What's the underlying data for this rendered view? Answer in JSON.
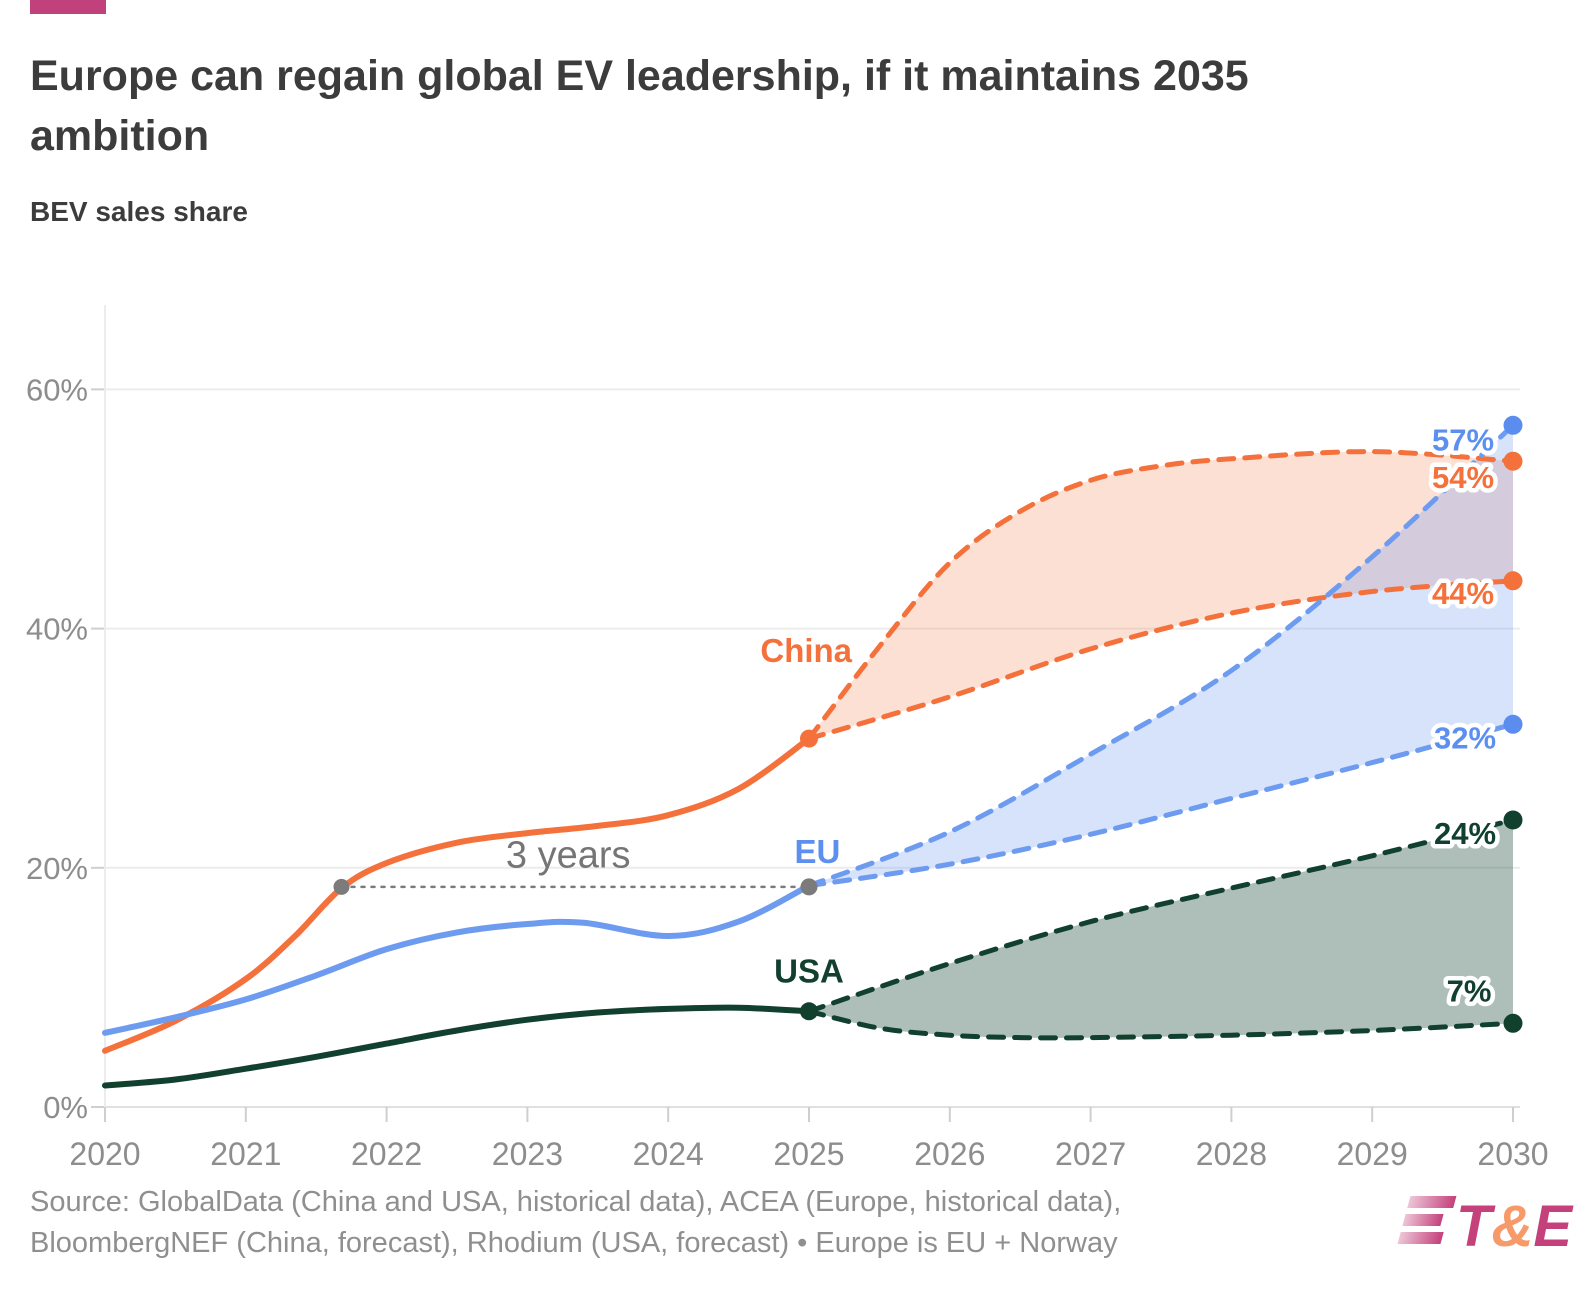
{
  "header": {
    "title_line1": "Europe can regain global EV leadership, if it maintains 2035",
    "title_line2": "ambition",
    "y_axis_title": "BEV sales share"
  },
  "source": {
    "line1": "Source: GlobalData (China and USA, historical data), ACEA (Europe, historical data),",
    "line2": "BloombergNEF (China, forecast), Rhodium (USA, forecast) • Europe is EU + Norway"
  },
  "logo": {
    "t": "T",
    "amp": "&",
    "e": "E",
    "pink": "#c4417b",
    "orange": "#f79a6a"
  },
  "colors": {
    "china": "#f4713c",
    "eu_line": "#6d9bf0",
    "eu_label": "#5c8ff0",
    "eu_dot": "#5b8def",
    "usa": "#11402f",
    "china_fill": "rgba(244,113,60,0.22)",
    "eu_fill": "rgba(109,155,240,0.28)",
    "usa_fill": "rgba(17,64,47,0.34)",
    "grid": "#ececec",
    "axis_zero": "#e0e0e0",
    "tick": "#cfcfcf",
    "axis_text": "#8d8d8d",
    "annotation": "#757575",
    "annotation_dot": "#7b7b7b"
  },
  "chart_data": {
    "type": "line",
    "title": "Europe can regain global EV leadership, if it maintains 2035 ambition",
    "ylabel": "BEV sales share",
    "x_axis": {
      "range": [
        2020,
        2030
      ],
      "ticks": [
        2020,
        2021,
        2022,
        2023,
        2024,
        2025,
        2026,
        2027,
        2028,
        2029,
        2030
      ]
    },
    "y_axis": {
      "range": [
        0,
        62
      ],
      "tick_values": [
        0,
        20,
        40,
        60
      ],
      "tick_labels": [
        "0%",
        "20%",
        "40%",
        "60%"
      ]
    },
    "legend_position": "inline-labels",
    "grid": "horizontal-only",
    "series": [
      {
        "id": "china_hist",
        "name": "China historical",
        "style": "solid",
        "color": "#f4713c",
        "points": [
          [
            2020,
            4.7
          ],
          [
            2020.5,
            7.2
          ],
          [
            2021,
            10.7
          ],
          [
            2021.35,
            14.3
          ],
          [
            2021.68,
            18.3
          ],
          [
            2022,
            20.4
          ],
          [
            2022.5,
            22.1
          ],
          [
            2023,
            22.9
          ],
          [
            2023.5,
            23.5
          ],
          [
            2024,
            24.4
          ],
          [
            2024.5,
            26.6
          ],
          [
            2025,
            30.8
          ]
        ]
      },
      {
        "id": "china_forecast_high",
        "name": "China forecast high",
        "style": "dashed",
        "color": "#f4713c",
        "points": [
          [
            2025,
            30.8
          ],
          [
            2025.5,
            38.5
          ],
          [
            2026,
            45.5
          ],
          [
            2026.5,
            49.8
          ],
          [
            2027,
            52.4
          ],
          [
            2027.5,
            53.6
          ],
          [
            2028,
            54.2
          ],
          [
            2029,
            54.8
          ],
          [
            2030,
            54
          ]
        ]
      },
      {
        "id": "china_forecast_low",
        "name": "China forecast low",
        "style": "dashed",
        "color": "#f4713c",
        "points": [
          [
            2025,
            30.8
          ],
          [
            2026,
            34.3
          ],
          [
            2027,
            38.3
          ],
          [
            2028,
            41.3
          ],
          [
            2029,
            43.1
          ],
          [
            2030,
            44
          ]
        ]
      },
      {
        "id": "eu_hist",
        "name": "EU historical",
        "style": "solid",
        "color": "#6d9bf0",
        "points": [
          [
            2020,
            6.2
          ],
          [
            2020.5,
            7.5
          ],
          [
            2021,
            9.0
          ],
          [
            2021.5,
            11.0
          ],
          [
            2022,
            13.2
          ],
          [
            2022.5,
            14.6
          ],
          [
            2023,
            15.3
          ],
          [
            2023.4,
            15.4
          ],
          [
            2024,
            14.3
          ],
          [
            2024.5,
            15.5
          ],
          [
            2025,
            18.5
          ]
        ]
      },
      {
        "id": "eu_forecast_high",
        "name": "EU forecast high",
        "style": "dashed",
        "color": "#6d9bf0",
        "points": [
          [
            2025,
            18.5
          ],
          [
            2026,
            23
          ],
          [
            2027,
            29.5
          ],
          [
            2028,
            36.5
          ],
          [
            2029,
            46
          ],
          [
            2030,
            57
          ]
        ]
      },
      {
        "id": "eu_forecast_low",
        "name": "EU forecast low",
        "style": "dashed",
        "color": "#6d9bf0",
        "points": [
          [
            2025,
            18.5
          ],
          [
            2026,
            20.3
          ],
          [
            2027,
            22.8
          ],
          [
            2028,
            25.8
          ],
          [
            2029,
            28.8
          ],
          [
            2030,
            32
          ]
        ]
      },
      {
        "id": "usa_hist",
        "name": "USA historical",
        "style": "solid",
        "color": "#11402f",
        "points": [
          [
            2020,
            1.8
          ],
          [
            2020.5,
            2.3
          ],
          [
            2021,
            3.2
          ],
          [
            2021.5,
            4.2
          ],
          [
            2022,
            5.3
          ],
          [
            2022.5,
            6.4
          ],
          [
            2023,
            7.3
          ],
          [
            2023.5,
            7.9
          ],
          [
            2024,
            8.2
          ],
          [
            2024.5,
            8.3
          ],
          [
            2025,
            8.0
          ]
        ]
      },
      {
        "id": "usa_forecast_high",
        "name": "USA forecast high",
        "style": "dashed",
        "color": "#11402f",
        "points": [
          [
            2025,
            8
          ],
          [
            2026,
            12
          ],
          [
            2027,
            15.5
          ],
          [
            2028,
            18.3
          ],
          [
            2029,
            21
          ],
          [
            2030,
            24
          ]
        ]
      },
      {
        "id": "usa_forecast_low",
        "name": "USA forecast low",
        "style": "dashed",
        "color": "#11402f",
        "points": [
          [
            2025,
            8
          ],
          [
            2025.5,
            6.6
          ],
          [
            2026,
            6.0
          ],
          [
            2026.5,
            5.8
          ],
          [
            2027,
            5.8
          ],
          [
            2028,
            6.0
          ],
          [
            2029,
            6.4
          ],
          [
            2030,
            7
          ]
        ]
      }
    ],
    "bands": [
      {
        "upper": "china_forecast_high",
        "lower": "china_forecast_low",
        "fill": "rgba(244,113,60,0.22)"
      },
      {
        "upper": "eu_forecast_high",
        "lower": "eu_forecast_low",
        "fill": "rgba(109,155,240,0.28)"
      },
      {
        "upper": "usa_forecast_high",
        "lower": "usa_forecast_low",
        "fill": "rgba(17,64,47,0.34)"
      }
    ],
    "series_labels": [
      {
        "text": "China",
        "color": "#f4713c",
        "year": 2024.98,
        "value": 38.2
      },
      {
        "text": "EU",
        "color": "#5c8ff0",
        "year": 2025.06,
        "value": 21.4
      },
      {
        "text": "USA",
        "color": "#11402f",
        "year": 2025.0,
        "value": 11.4
      }
    ],
    "end_labels": [
      {
        "id": "eu_high",
        "text": "57%",
        "color": "#5c8ff0",
        "value": 57
      },
      {
        "id": "china_high",
        "text": "54%",
        "color": "#f4713c",
        "value": 54
      },
      {
        "id": "china_low",
        "text": "44%",
        "color": "#f4713c",
        "value": 44
      },
      {
        "id": "eu_low",
        "text": "32%",
        "color": "#5c8ff0",
        "value": 32
      },
      {
        "id": "usa_high",
        "text": "24%",
        "color": "#11402f",
        "value": 24
      },
      {
        "id": "usa_low",
        "text": "7%",
        "color": "#11402f",
        "value": 7
      }
    ],
    "markers": [
      {
        "year": 2021.68,
        "value": 18.4,
        "color": "#7b7b7b",
        "r": 8
      },
      {
        "year": 2025,
        "value": 18.4,
        "color": "#7b7b7b",
        "r": 8.5
      },
      {
        "year": 2025,
        "value": 30.8,
        "color": "#f4713c",
        "r": 9
      },
      {
        "year": 2025,
        "value": 8,
        "color": "#11402f",
        "r": 9
      },
      {
        "year": 2030,
        "value": 57,
        "color": "#5b8def",
        "r": 9.5
      },
      {
        "year": 2030,
        "value": 54,
        "color": "#f4713c",
        "r": 9.5
      },
      {
        "year": 2030,
        "value": 44,
        "color": "#f4713c",
        "r": 9.5
      },
      {
        "year": 2030,
        "value": 32,
        "color": "#5b8def",
        "r": 9.5
      },
      {
        "year": 2030,
        "value": 24,
        "color": "#11402f",
        "r": 9.5
      },
      {
        "year": 2030,
        "value": 7,
        "color": "#11402f",
        "r": 9.5
      }
    ],
    "annotation_line": {
      "text": "3 years",
      "from": {
        "year": 2021.68,
        "value": 18.4
      },
      "to": {
        "year": 2025,
        "value": 18.4
      },
      "label": {
        "year": 2023.29,
        "value": 21.1
      }
    }
  }
}
